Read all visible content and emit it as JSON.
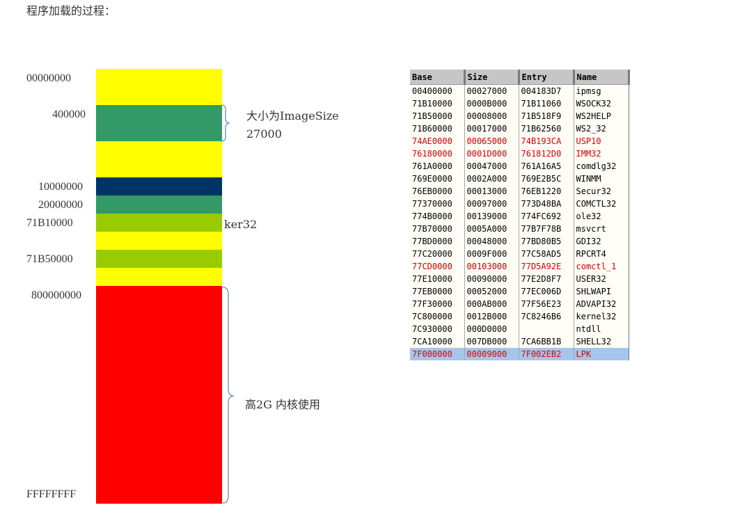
{
  "doc": {
    "title": "程序加载的过程："
  },
  "memory_map": {
    "addresses": [
      {
        "label": "00000000"
      },
      {
        "label": "400000"
      },
      {
        "label": "10000000"
      },
      {
        "label": "20000000"
      },
      {
        "label": "71B10000"
      },
      {
        "label": "71B50000"
      },
      {
        "label": "800000000"
      },
      {
        "label": "FFFFFFFF"
      }
    ],
    "blocks": [
      {
        "color": "#ffff00"
      },
      {
        "color": "#339966"
      },
      {
        "color": "#ffff00"
      },
      {
        "color": "#003366"
      },
      {
        "color": "#339966"
      },
      {
        "color": "#99cc00"
      },
      {
        "color": "#ffff00"
      },
      {
        "color": "#99cc00"
      },
      {
        "color": "#ffff00"
      },
      {
        "color": "#ff0000"
      }
    ],
    "annotations": {
      "image_size_line1": "大小为ImageSize",
      "image_size_line2": "27000",
      "ker32": "ker32",
      "kernel_use": "高2G 内核使用"
    },
    "brace_color": "#7b9cc4"
  },
  "module_table": {
    "columns": [
      "Base",
      "Size",
      "Entry",
      "Name"
    ],
    "highlight_color": "#e00000",
    "selected_row_color": "#a6c5ea",
    "rows": [
      {
        "base": "00400000",
        "size": "00027000",
        "entry": "004183D7",
        "name": "ipmsg",
        "state": "normal"
      },
      {
        "base": "71B10000",
        "size": "0000B000",
        "entry": "71B11060",
        "name": "WSOCK32",
        "state": "normal"
      },
      {
        "base": "71B50000",
        "size": "00008000",
        "entry": "71B518F9",
        "name": "WS2HELP",
        "state": "normal"
      },
      {
        "base": "71B60000",
        "size": "00017000",
        "entry": "71B62560",
        "name": "WS2_32",
        "state": "normal"
      },
      {
        "base": "74AE0000",
        "size": "00065000",
        "entry": "74B193CA",
        "name": "USP10",
        "state": "highlight"
      },
      {
        "base": "76180000",
        "size": "0001D000",
        "entry": "761812D0",
        "name": "IMM32",
        "state": "highlight"
      },
      {
        "base": "761A0000",
        "size": "00047000",
        "entry": "761A16A5",
        "name": "comdlg32",
        "state": "normal"
      },
      {
        "base": "769E0000",
        "size": "0002A000",
        "entry": "769E2B5C",
        "name": "WINMM",
        "state": "normal"
      },
      {
        "base": "76EB0000",
        "size": "00013000",
        "entry": "76EB1220",
        "name": "Secur32",
        "state": "normal"
      },
      {
        "base": "77370000",
        "size": "00097000",
        "entry": "773D48BA",
        "name": "COMCTL32",
        "state": "normal"
      },
      {
        "base": "774B0000",
        "size": "00139000",
        "entry": "774FC692",
        "name": "ole32",
        "state": "normal"
      },
      {
        "base": "77B70000",
        "size": "0005A000",
        "entry": "77B7F78B",
        "name": "msvcrt",
        "state": "normal"
      },
      {
        "base": "77BD0000",
        "size": "00048000",
        "entry": "77BD80B5",
        "name": "GDI32",
        "state": "normal"
      },
      {
        "base": "77C20000",
        "size": "0009F000",
        "entry": "77C58AD5",
        "name": "RPCRT4",
        "state": "normal"
      },
      {
        "base": "77CD0000",
        "size": "00103000",
        "entry": "77D5A92E",
        "name": "comctl_1",
        "state": "highlight"
      },
      {
        "base": "77E10000",
        "size": "00090000",
        "entry": "77E2D8F7",
        "name": "USER32",
        "state": "normal"
      },
      {
        "base": "77EB0000",
        "size": "00052000",
        "entry": "77EC006D",
        "name": "SHLWAPI",
        "state": "normal"
      },
      {
        "base": "77F30000",
        "size": "000AB000",
        "entry": "77F56E23",
        "name": "ADVAPI32",
        "state": "normal"
      },
      {
        "base": "7C800000",
        "size": "0012B000",
        "entry": "7C8246B6",
        "name": "kernel32",
        "state": "normal"
      },
      {
        "base": "7C930000",
        "size": "000D0000",
        "entry": "",
        "name": "ntdll",
        "state": "normal"
      },
      {
        "base": "7CA10000",
        "size": "007DB000",
        "entry": "7CA6BB1B",
        "name": "SHELL32",
        "state": "normal"
      },
      {
        "base": "7F000000",
        "size": "00009000",
        "entry": "7F002EB2",
        "name": "LPK",
        "state": "selected"
      }
    ]
  }
}
